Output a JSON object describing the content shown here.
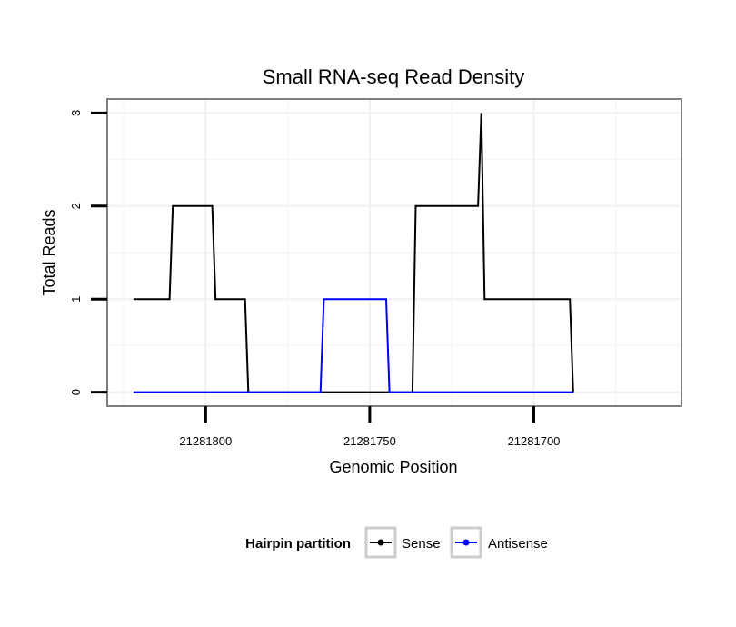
{
  "chart_data": {
    "type": "line",
    "title": "Small RNA-seq Read Density",
    "xlabel": "Genomic Position",
    "ylabel": "Total Reads",
    "x_reversed": true,
    "xlim": [
      21281830,
      21281655
    ],
    "ylim": [
      -0.15,
      3.15
    ],
    "x_ticks": [
      21281800,
      21281750,
      21281700
    ],
    "x_tick_labels": [
      "21281800",
      "21281750",
      "21281700"
    ],
    "y_ticks": [
      0,
      1,
      2,
      3
    ],
    "y_tick_labels": [
      "0",
      "1",
      "2",
      "3"
    ],
    "grid": true,
    "legend": {
      "title": "Hairpin partition",
      "position": "bottom"
    },
    "series": [
      {
        "name": "Sense",
        "color": "#000000",
        "x": [
          21281822,
          21281811,
          21281810,
          21281798,
          21281797,
          21281788,
          21281787,
          21281737,
          21281736,
          21281717,
          21281716,
          21281715,
          21281714,
          21281689,
          21281688
        ],
        "y": [
          1,
          1,
          2,
          2,
          1,
          1,
          0,
          0,
          2,
          2,
          3,
          1,
          1,
          1,
          0
        ]
      },
      {
        "name": "Antisense",
        "color": "#0000ff",
        "x": [
          21281822,
          21281765,
          21281764,
          21281745,
          21281744,
          21281688
        ],
        "y": [
          0,
          0,
          1,
          1,
          0,
          0
        ]
      }
    ]
  }
}
